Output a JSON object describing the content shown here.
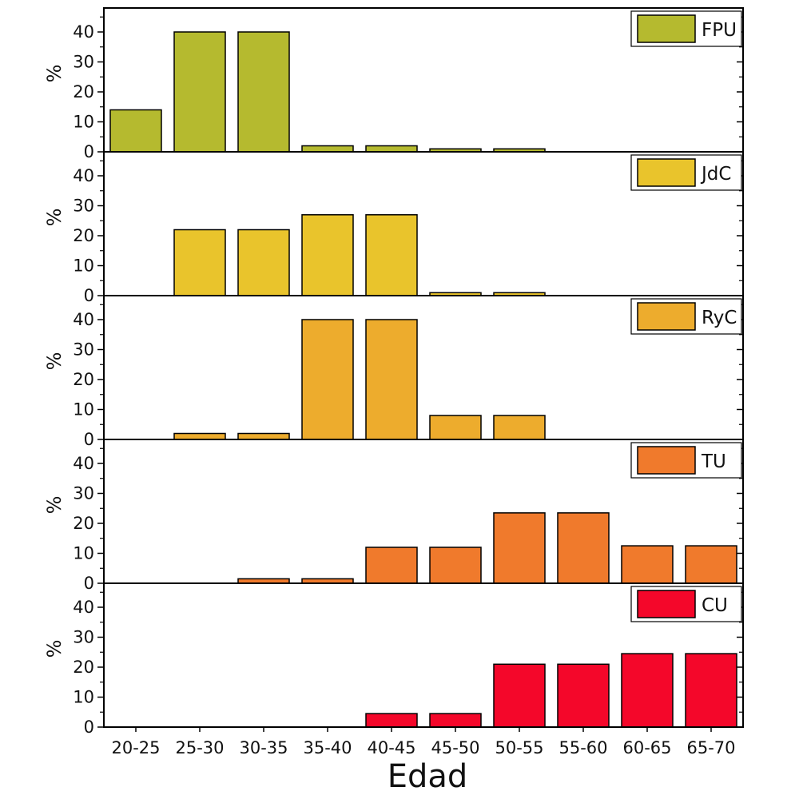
{
  "chart_data": {
    "type": "bar",
    "layout": "stacked-panels",
    "xlabel": "Edad",
    "categories": [
      "20-25",
      "25-30",
      "30-35",
      "35-40",
      "40-45",
      "45-50",
      "50-55",
      "55-60",
      "60-65",
      "65-70"
    ],
    "ylim": [
      0,
      48
    ],
    "yticks": [
      0,
      10,
      20,
      30,
      40
    ],
    "legend_position": "top-right",
    "grid": false,
    "panels": [
      {
        "name": "FPU",
        "ylabel": "%",
        "color": "#b5ba2f",
        "values": [
          14,
          40,
          40,
          2,
          2,
          1,
          1,
          0,
          0,
          0
        ]
      },
      {
        "name": "JdC",
        "ylabel": "%",
        "color": "#e9c42c",
        "values": [
          0,
          22,
          22,
          27,
          27,
          1,
          1,
          0,
          0,
          0
        ]
      },
      {
        "name": "RyC",
        "ylabel": "%",
        "color": "#edac2d",
        "values": [
          0,
          2,
          2,
          40,
          40,
          8,
          8,
          0,
          0,
          0
        ]
      },
      {
        "name": "TU",
        "ylabel": "%",
        "color": "#f07a2c",
        "values": [
          0,
          0,
          1.5,
          1.5,
          12,
          12,
          23.5,
          23.5,
          12.5,
          12.5
        ]
      },
      {
        "name": "CU",
        "ylabel": "%",
        "color": "#f4072a",
        "values": [
          0,
          0,
          0,
          0,
          4.5,
          4.5,
          21,
          21,
          24.5,
          24.5
        ]
      }
    ]
  }
}
